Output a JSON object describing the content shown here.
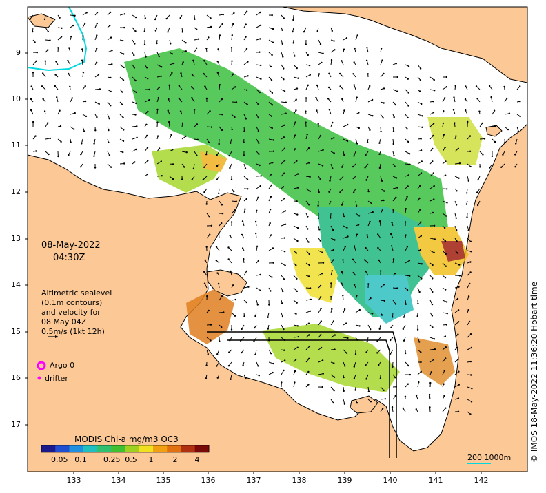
{
  "map": {
    "timestamp_date": "08-May-2022",
    "timestamp_time": "04:30Z",
    "lon_ticks": [
      "133",
      "134",
      "135",
      "136",
      "137",
      "138",
      "139",
      "140",
      "141",
      "142"
    ],
    "lat_ticks": [
      "9",
      "10",
      "11",
      "12",
      "13",
      "14",
      "15",
      "16",
      "17"
    ],
    "lon_range": [
      132.0,
      143.0
    ],
    "lat_range": [
      -17.8,
      -8.0
    ]
  },
  "info": {
    "lines": [
      "Altimetric sealevel",
      "(0.1m contours)",
      "and velocity for",
      "08 May 04Z",
      "0.5m/s (1kt 12h)"
    ]
  },
  "legend": {
    "argo_label": "Argo 0",
    "drifter_label": "drifter",
    "argo_color": "#ff00ff",
    "drifter_color": "#ff00ff"
  },
  "colorbar": {
    "title": "MODIS Chl-a mg/m3 OC3",
    "ticks": [
      "0.05",
      "0.1",
      "0.25",
      "0.5",
      "1",
      "2",
      "4"
    ],
    "colors": [
      "#1a1a8c",
      "#1f4fd0",
      "#1f8fe0",
      "#20c0c0",
      "#30c070",
      "#40c030",
      "#a0d020",
      "#f0e020",
      "#f0a010",
      "#e07010",
      "#b03010",
      "#7a0a0a"
    ]
  },
  "scale": {
    "label": "200  1000m"
  },
  "credit": "© IMOS 18-May-2022 11:36:20 Hobart time",
  "colors": {
    "land": "#fbc896",
    "ocean": "#ffffff",
    "boundary": "#00d8e0"
  }
}
